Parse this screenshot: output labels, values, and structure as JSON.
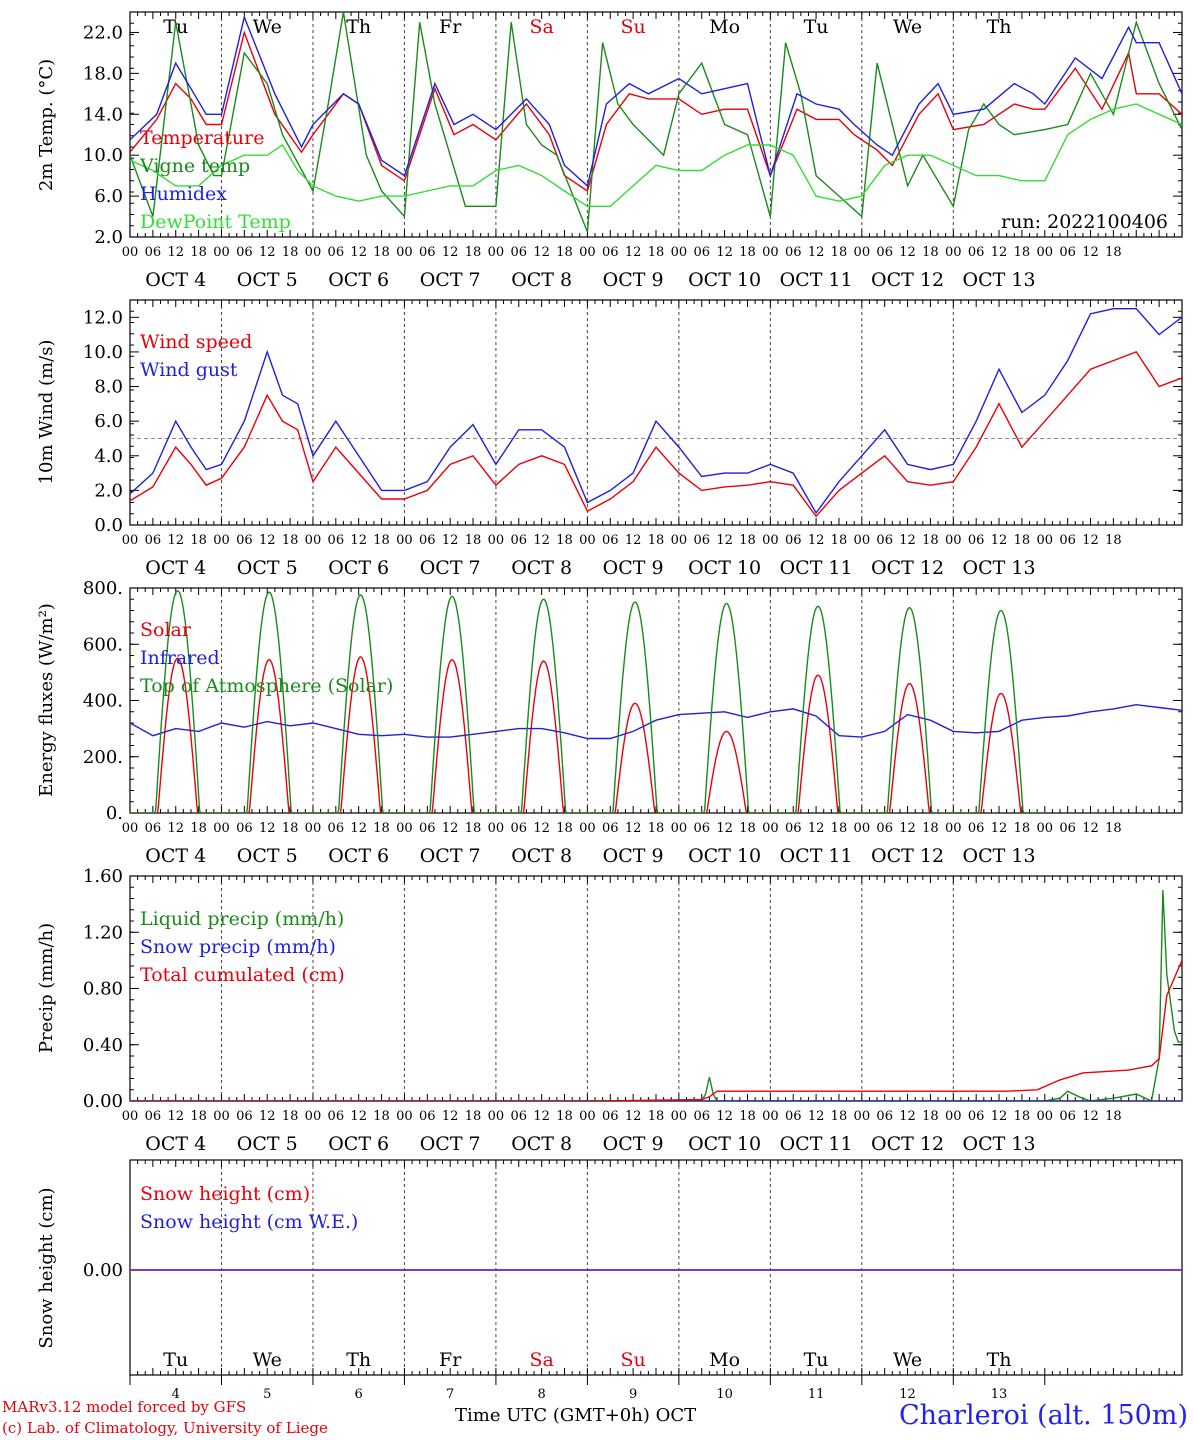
{
  "run_label": "run: 2022100406",
  "x_axis_title": "Time UTC (GMT+0h)",
  "x_axis_month": "OCT",
  "credits": [
    "MARv3.12 model forced by GFS",
    "(c) Lab. of Climatology, University of Liege"
  ],
  "station": "Charleroi (alt. 150m)",
  "days": [
    {
      "dow": "Tu",
      "label": "OCT  4",
      "num": "4",
      "weekend": false
    },
    {
      "dow": "We",
      "label": "OCT  5",
      "num": "5",
      "weekend": false
    },
    {
      "dow": "Th",
      "label": "OCT  6",
      "num": "6",
      "weekend": false
    },
    {
      "dow": "Fr",
      "label": "OCT  7",
      "num": "7",
      "weekend": false
    },
    {
      "dow": "Sa",
      "label": "OCT  8",
      "num": "8",
      "weekend": true
    },
    {
      "dow": "Su",
      "label": "OCT  9",
      "num": "9",
      "weekend": true
    },
    {
      "dow": "Mo",
      "label": "OCT 10",
      "num": "10",
      "weekend": false
    },
    {
      "dow": "Tu",
      "label": "OCT 11",
      "num": "11",
      "weekend": false
    },
    {
      "dow": "We",
      "label": "OCT 12",
      "num": "12",
      "weekend": false
    },
    {
      "dow": "Th",
      "label": "OCT 13",
      "num": "13",
      "weekend": false
    }
  ],
  "hour_ticks": [
    "00",
    "06",
    "12",
    "18"
  ],
  "colors": {
    "red": "#e8000b",
    "blue": "#1f1fdd",
    "green": "#1a8a1a",
    "lightgreen": "#33dd33",
    "purple": "#8833aa"
  },
  "chart_data": [
    {
      "type": "line",
      "ylabel": "2m Temp. (°C)",
      "ylim": [
        2.0,
        24.0
      ],
      "yticks": [
        "2.0",
        "6.0",
        "10.0",
        "14.0",
        "18.0",
        "22.0"
      ],
      "ytick_values": [
        2,
        6,
        10,
        14,
        18,
        22
      ],
      "x_unit": "hours since OCT 4 00 UTC",
      "series": [
        {
          "name": "Temperature",
          "color": "red",
          "x": [
            0,
            7,
            12,
            16,
            20,
            24,
            30,
            38,
            45,
            48,
            56,
            60,
            66,
            72,
            80,
            85,
            90,
            96,
            104,
            110,
            114,
            120,
            125,
            131,
            136,
            144,
            150,
            156,
            162,
            168,
            175,
            180,
            186,
            190,
            196,
            200,
            207,
            212,
            216,
            224,
            232,
            237,
            240,
            248,
            255,
            262,
            264,
            270,
            276
          ],
          "y": [
            10.3,
            13.5,
            17,
            15.5,
            13,
            13,
            22,
            14,
            10.3,
            12,
            16,
            15,
            9,
            7.5,
            16.5,
            12,
            13,
            11.5,
            15,
            12,
            8,
            6.5,
            13,
            16,
            15.5,
            15.5,
            14,
            14.5,
            14.5,
            8,
            14.5,
            13.5,
            13.5,
            12,
            10.5,
            9,
            14,
            16,
            12.5,
            13,
            15,
            14.5,
            14.5,
            18.5,
            14.5,
            20,
            16,
            16,
            14
          ]
        },
        {
          "name": "Vigne temp",
          "color": "green",
          "x": [
            0,
            6,
            12,
            18,
            22,
            24,
            30,
            36,
            40,
            48,
            52,
            56,
            62,
            66,
            72,
            76,
            80,
            84,
            88,
            96,
            100,
            104,
            108,
            112,
            120,
            124,
            128,
            132,
            140,
            144,
            150,
            156,
            162,
            168,
            172,
            176,
            180,
            186,
            192,
            196,
            204,
            208,
            216,
            220,
            224,
            228,
            232,
            240,
            246,
            252,
            258,
            264,
            270,
            276
          ],
          "y": [
            10,
            4,
            23,
            11,
            8,
            8,
            20,
            17,
            12,
            6.5,
            15,
            24,
            10,
            6.5,
            4,
            23,
            15,
            10,
            5,
            5,
            23,
            13,
            11,
            10,
            2.5,
            21,
            15,
            13,
            10,
            16,
            19,
            13,
            12,
            4,
            21,
            16,
            8,
            6,
            4,
            19,
            7,
            10,
            5,
            12.5,
            15,
            13,
            12,
            12.5,
            13,
            18,
            14,
            23,
            17,
            12.5
          ]
        },
        {
          "name": "Humidex",
          "color": "blue",
          "x": [
            0,
            7,
            12,
            16,
            20,
            24,
            30,
            38,
            45,
            48,
            56,
            60,
            66,
            72,
            80,
            85,
            90,
            96,
            104,
            110,
            114,
            120,
            125,
            131,
            136,
            144,
            150,
            156,
            162,
            168,
            175,
            180,
            186,
            190,
            196,
            200,
            207,
            212,
            216,
            224,
            232,
            237,
            240,
            248,
            255,
            262,
            264,
            270,
            276
          ],
          "y": [
            11.5,
            14,
            19,
            16.5,
            14,
            14,
            23.5,
            16,
            10.8,
            13,
            16,
            15,
            9.5,
            8,
            17,
            13,
            14,
            12.5,
            15.5,
            13,
            9,
            7,
            15,
            17,
            16,
            17.5,
            16,
            16.5,
            17,
            8,
            16,
            15,
            14.5,
            13,
            11,
            10,
            15,
            17,
            14,
            14.5,
            17,
            16,
            15,
            19.5,
            17.5,
            22.5,
            21,
            21,
            16
          ]
        },
        {
          "name": "DewPoint Temp",
          "color": "lightgreen",
          "x": [
            0,
            6,
            12,
            18,
            24,
            30,
            36,
            40,
            44,
            48,
            54,
            60,
            66,
            72,
            78,
            84,
            90,
            96,
            102,
            108,
            114,
            120,
            126,
            132,
            138,
            144,
            150,
            156,
            162,
            168,
            174,
            180,
            186,
            192,
            198,
            204,
            210,
            216,
            222,
            228,
            234,
            240,
            246,
            252,
            258,
            264,
            270,
            276
          ],
          "y": [
            9.5,
            8.5,
            7,
            7,
            9,
            10,
            10,
            11,
            8.5,
            7,
            6,
            5.5,
            6,
            6,
            6.5,
            7,
            7,
            8.5,
            9,
            8,
            6.5,
            5,
            5,
            7,
            9,
            8.5,
            8.5,
            10,
            11,
            11,
            10,
            6,
            5.5,
            6,
            9,
            10,
            10,
            9,
            8,
            8,
            7.5,
            7.5,
            12,
            13.5,
            14.5,
            15,
            14,
            13
          ]
        }
      ],
      "legend": [
        "Temperature",
        "Vigne temp",
        "Humidex",
        "DewPoint Temp"
      ],
      "legend_placement": "upper-left",
      "grid": false
    },
    {
      "type": "line",
      "ylabel": "10m Wind (m/s)",
      "ylim": [
        0.0,
        13.0
      ],
      "yticks": [
        "0.0",
        "2.0",
        "4.0",
        "6.0",
        "8.0",
        "10.0",
        "12.0"
      ],
      "ytick_values": [
        0,
        2,
        4,
        6,
        8,
        10,
        12
      ],
      "reference_line": 5.0,
      "series": [
        {
          "name": "Wind speed",
          "color": "red",
          "x": [
            0,
            6,
            12,
            16,
            20,
            24,
            30,
            36,
            40,
            44,
            48,
            54,
            60,
            66,
            72,
            78,
            84,
            90,
            96,
            102,
            108,
            114,
            120,
            126,
            132,
            138,
            144,
            150,
            156,
            162,
            168,
            174,
            180,
            186,
            192,
            198,
            204,
            210,
            216,
            222,
            228,
            234,
            240,
            246,
            252,
            258,
            264,
            270,
            276
          ],
          "y": [
            1.4,
            2.2,
            4.5,
            3.5,
            2.3,
            2.7,
            4.5,
            7.5,
            6,
            5.5,
            2.5,
            4.5,
            3,
            1.5,
            1.5,
            2,
            3.5,
            4,
            2.3,
            3.5,
            4,
            3.5,
            0.8,
            1.5,
            2.5,
            4.5,
            3,
            2,
            2.2,
            2.3,
            2.5,
            2.3,
            0.5,
            2,
            3,
            4,
            2.5,
            2.3,
            2.5,
            4.5,
            7,
            4.5,
            6,
            7.5,
            9,
            9.5,
            10,
            8,
            8.5
          ]
        },
        {
          "name": "Wind gust",
          "color": "blue",
          "x": [
            0,
            6,
            12,
            16,
            20,
            24,
            30,
            36,
            40,
            44,
            48,
            54,
            60,
            66,
            72,
            78,
            84,
            90,
            96,
            102,
            108,
            114,
            120,
            126,
            132,
            138,
            144,
            150,
            156,
            162,
            168,
            174,
            180,
            186,
            192,
            198,
            204,
            210,
            216,
            222,
            228,
            234,
            240,
            246,
            252,
            258,
            264,
            270,
            276
          ],
          "y": [
            1.8,
            3,
            6,
            4.5,
            3.2,
            3.5,
            6,
            10,
            7.5,
            7,
            4,
            6,
            4,
            2,
            2,
            2.5,
            4.5,
            5.8,
            3.5,
            5.5,
            5.5,
            4.5,
            1.3,
            2,
            3,
            6,
            4.5,
            2.8,
            3,
            3,
            3.5,
            3,
            0.7,
            2.5,
            4,
            5.5,
            3.5,
            3.2,
            3.5,
            6,
            9,
            6.5,
            7.5,
            9.5,
            12.2,
            12.5,
            12.5,
            11,
            12
          ]
        }
      ],
      "legend": [
        "Wind speed",
        "Wind gust"
      ],
      "legend_placement": "upper-left",
      "grid": false
    },
    {
      "type": "line",
      "ylabel": "Energy fluxes (W/m²)",
      "ylim": [
        0,
        800
      ],
      "yticks": [
        "0.",
        "200.",
        "400.",
        "600.",
        "800."
      ],
      "ytick_values": [
        0,
        200,
        400,
        600,
        800
      ],
      "series": [
        {
          "name": "Solar",
          "color": "red",
          "daily_peak": [
            550,
            545,
            555,
            545,
            540,
            390,
            290,
            490,
            460,
            425
          ]
        },
        {
          "name": "Infrared",
          "color": "blue",
          "x": [
            0,
            6,
            12,
            18,
            24,
            30,
            36,
            42,
            48,
            54,
            60,
            66,
            72,
            78,
            84,
            90,
            96,
            102,
            108,
            114,
            120,
            126,
            132,
            138,
            144,
            150,
            156,
            162,
            168,
            174,
            180,
            186,
            192,
            198,
            204,
            210,
            216,
            222,
            228,
            234,
            240,
            246,
            252,
            258,
            264,
            270,
            276
          ],
          "y": [
            320,
            275,
            300,
            290,
            320,
            305,
            325,
            310,
            320,
            300,
            280,
            275,
            280,
            270,
            270,
            280,
            290,
            300,
            300,
            285,
            265,
            265,
            290,
            330,
            350,
            355,
            360,
            340,
            360,
            370,
            345,
            275,
            270,
            290,
            350,
            330,
            290,
            285,
            290,
            330,
            340,
            345,
            360,
            370,
            385,
            375,
            365
          ]
        },
        {
          "name": "Top of Atmosphere (Solar)",
          "color": "green",
          "daily_peak": [
            790,
            785,
            775,
            770,
            760,
            750,
            745,
            735,
            730,
            720
          ]
        }
      ],
      "legend": [
        "Solar",
        "Infrared",
        "Top of Atmosphere (Solar)"
      ],
      "legend_placement": "upper-left",
      "grid": false
    },
    {
      "type": "line",
      "ylabel": "Precip (mm/h)",
      "ylim": [
        0.0,
        1.6
      ],
      "yticks": [
        "0.00",
        "0.40",
        "0.80",
        "1.20",
        "1.60"
      ],
      "ytick_values": [
        0,
        0.4,
        0.8,
        1.2,
        1.6
      ],
      "series": [
        {
          "name": "Liquid precip (mm/h)",
          "color": "green",
          "x": [
            0,
            150,
            151,
            152,
            153,
            154,
            240,
            244,
            246,
            249,
            252,
            258,
            264,
            268,
            270,
            271,
            272,
            273,
            274,
            275,
            276
          ],
          "y": [
            0,
            0,
            0.05,
            0.17,
            0.05,
            0,
            0,
            0.02,
            0.07,
            0.03,
            0,
            0.02,
            0.05,
            0,
            0.3,
            1.5,
            0.9,
            0.7,
            0.5,
            0.42,
            0.42
          ]
        },
        {
          "name": "Snow precip (mm/h)",
          "color": "blue",
          "x": [
            0,
            276
          ],
          "y": [
            0,
            0
          ]
        },
        {
          "name": "Total cumulated (cm)",
          "color": "red",
          "x": [
            0,
            120,
            150,
            152,
            154,
            170,
            200,
            230,
            238,
            244,
            250,
            262,
            268,
            270,
            272,
            276
          ],
          "y": [
            0,
            0,
            0.01,
            0.03,
            0.07,
            0.07,
            0.07,
            0.07,
            0.08,
            0.15,
            0.2,
            0.22,
            0.25,
            0.3,
            0.75,
            1.0
          ]
        }
      ],
      "legend": [
        "Liquid precip (mm/h)",
        "Snow precip (mm/h)",
        "Total cumulated (cm)"
      ],
      "legend_placement": "upper-left",
      "grid": false
    },
    {
      "type": "line",
      "ylabel": "Snow height (cm)",
      "yticks": [
        "0.00"
      ],
      "ytick_values": [
        0
      ],
      "series": [
        {
          "name": "Snow height (cm)",
          "color": "red",
          "x": [
            0,
            276
          ],
          "y": [
            0,
            0
          ]
        },
        {
          "name": "Snow height (cm W.E.)",
          "color": "blue",
          "x": [
            0,
            276
          ],
          "y": [
            0,
            0
          ]
        }
      ],
      "legend": [
        "Snow height (cm)",
        "Snow height (cm W.E.)"
      ],
      "legend_placement": "upper-left",
      "grid": false
    }
  ]
}
